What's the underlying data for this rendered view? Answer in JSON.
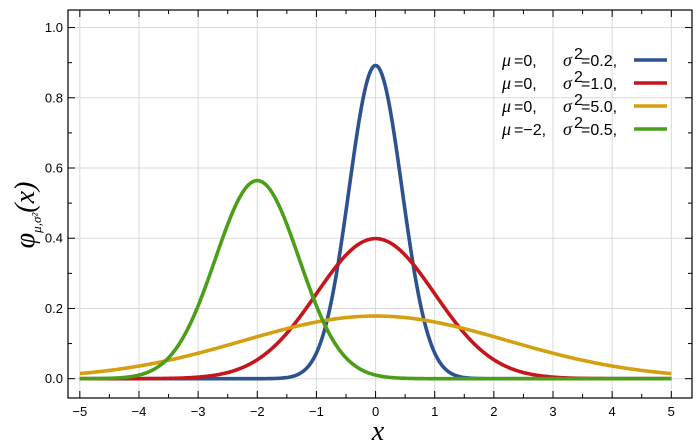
{
  "chart_data": {
    "type": "line",
    "xlabel": "x",
    "ylabel": {
      "symbol": "φ",
      "subscript": "μ,σ²",
      "argument": "(x)"
    },
    "xlim": [
      -5.2,
      5.35
    ],
    "ylim": [
      -0.055,
      1.05
    ],
    "x_ticks": [
      -5,
      -4,
      -3,
      -2,
      -1,
      0,
      1,
      2,
      3,
      4,
      5
    ],
    "x_tick_labels": [
      "−5",
      "−4",
      "−3",
      "−2",
      "−1",
      "0",
      "1",
      "2",
      "3",
      "4",
      "5"
    ],
    "y_ticks": [
      0.0,
      0.2,
      0.4,
      0.6,
      0.8,
      1.0
    ],
    "y_tick_labels": [
      "0.0",
      "0.2",
      "0.4",
      "0.6",
      "0.8",
      "1.0"
    ],
    "grid": true,
    "legend_placement": "top-right",
    "series": [
      {
        "mu": 0,
        "sigma2": 0.2,
        "mu_label": "0,",
        "sigma2_label": "0.2,",
        "color": "#2e528f"
      },
      {
        "mu": 0,
        "sigma2": 1.0,
        "mu_label": "0,",
        "sigma2_label": "1.0,",
        "color": "#c4161c"
      },
      {
        "mu": 0,
        "sigma2": 5.0,
        "mu_label": "0,",
        "sigma2_label": "5.0,",
        "color": "#d4a012"
      },
      {
        "mu": -2,
        "sigma2": 0.5,
        "mu_label": "−2,",
        "sigma2_label": "0.5,",
        "color": "#4b9e19"
      }
    ]
  }
}
